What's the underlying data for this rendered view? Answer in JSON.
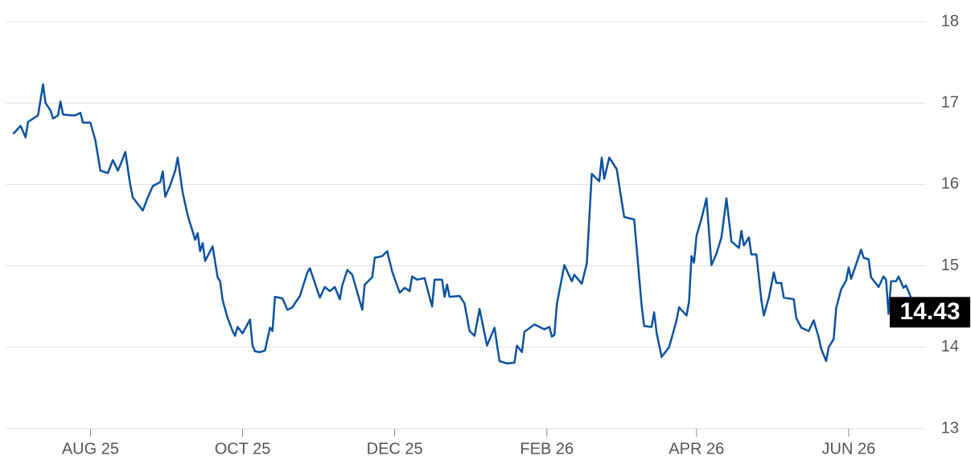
{
  "chart_data": {
    "type": "line",
    "color": "#0b52a0",
    "grid": true,
    "x": [
      0,
      3,
      5,
      6,
      10,
      12,
      13,
      15,
      16,
      18,
      19,
      20,
      23,
      25,
      27,
      28,
      31,
      33,
      35,
      38,
      40,
      42,
      43,
      45,
      47,
      48,
      52,
      54,
      56,
      59,
      60,
      61,
      63,
      65,
      66,
      68,
      70,
      73,
      74,
      75,
      76,
      77,
      80,
      82,
      83,
      84,
      86,
      88,
      89,
      90,
      92,
      95,
      96,
      97,
      99,
      101,
      103,
      104,
      105,
      108,
      110,
      112,
      113,
      115,
      118,
      119,
      123,
      125,
      127,
      129,
      131,
      132,
      134,
      136,
      140,
      141,
      144,
      145,
      148,
      150,
      152,
      155,
      157,
      159,
      160,
      162,
      165,
      168,
      169,
      172,
      173,
      174,
      175,
      179,
      181,
      183,
      185,
      187,
      190,
      193,
      195,
      198,
      201,
      202,
      204,
      205,
      209,
      211,
      213,
      215,
      216,
      217,
      218,
      221,
      224,
      225,
      228,
      230,
      232,
      235,
      236,
      237,
      239,
      242,
      243,
      245,
      249,
      252,
      253,
      256,
      257,
      258,
      260,
      263,
      265,
      266,
      267,
      270,
      271,
      272,
      273,
      274,
      276,
      278,
      280,
      282,
      284,
      286,
      288,
      291,
      292,
      293,
      295,
      296,
      298,
      300,
      301,
      303,
      305,
      306,
      308,
      309,
      313,
      314,
      316,
      319,
      321,
      323,
      324,
      326,
      327,
      329,
      330,
      332,
      334,
      335,
      336,
      340,
      341,
      343,
      344,
      347,
      349,
      350,
      351,
      352,
      354,
      355,
      357,
      358,
      360,
      361,
      363,
      365
    ],
    "values": [
      16.62,
      16.72,
      16.58,
      16.77,
      16.85,
      17.23,
      17.0,
      16.91,
      16.81,
      16.85,
      17.02,
      16.86,
      16.85,
      16.85,
      16.88,
      16.76,
      16.76,
      16.54,
      16.17,
      16.14,
      16.3,
      16.17,
      16.24,
      16.4,
      15.99,
      15.84,
      15.68,
      15.84,
      15.98,
      16.03,
      16.16,
      15.85,
      15.99,
      16.17,
      16.33,
      15.9,
      15.62,
      15.32,
      15.4,
      15.18,
      15.28,
      15.06,
      15.24,
      14.86,
      14.81,
      14.58,
      14.36,
      14.2,
      14.14,
      14.25,
      14.17,
      14.34,
      14.02,
      13.95,
      13.94,
      13.96,
      14.24,
      14.2,
      14.62,
      14.6,
      14.46,
      14.49,
      14.54,
      14.63,
      14.92,
      14.97,
      14.61,
      14.74,
      14.69,
      14.74,
      14.59,
      14.76,
      14.95,
      14.89,
      14.46,
      14.77,
      14.86,
      15.1,
      15.12,
      15.18,
      14.93,
      14.67,
      14.73,
      14.69,
      14.87,
      14.83,
      14.85,
      14.5,
      14.83,
      14.83,
      14.62,
      14.77,
      14.62,
      14.63,
      14.54,
      14.2,
      14.14,
      14.47,
      14.02,
      14.24,
      13.83,
      13.8,
      13.81,
      14.02,
      13.94,
      14.19,
      14.28,
      14.25,
      14.22,
      14.25,
      14.13,
      14.15,
      14.53,
      15.01,
      14.81,
      14.89,
      14.78,
      15.03,
      16.13,
      16.04,
      16.33,
      16.07,
      16.33,
      16.19,
      15.99,
      15.6,
      15.57,
      14.51,
      14.26,
      14.25,
      14.43,
      14.18,
      13.88,
      14.0,
      14.22,
      14.33,
      14.49,
      14.39,
      14.56,
      15.12,
      15.04,
      15.37,
      15.58,
      15.83,
      15.01,
      15.15,
      15.35,
      15.83,
      15.3,
      15.22,
      15.43,
      15.25,
      15.35,
      15.14,
      15.14,
      14.58,
      14.39,
      14.61,
      14.92,
      14.79,
      14.79,
      14.61,
      14.59,
      14.36,
      14.24,
      14.2,
      14.33,
      14.12,
      13.98,
      13.83,
      14.0,
      14.1,
      14.48,
      14.71,
      14.82,
      14.98,
      14.84,
      15.2,
      15.1,
      15.08,
      14.86,
      14.74,
      14.87,
      14.83,
      14.41,
      14.81,
      14.81,
      14.87,
      14.73,
      14.76,
      14.61,
      14.56,
      14.53,
      14.43
    ],
    "xlim": [
      -3,
      366
    ],
    "xticks": [
      {
        "value": 31,
        "label": "AUG 25"
      },
      {
        "value": 92,
        "label": "OCT 25"
      },
      {
        "value": 153,
        "label": "DEC 25"
      },
      {
        "value": 214,
        "label": "FEB 26"
      },
      {
        "value": 274,
        "label": "APR 26"
      },
      {
        "value": 335,
        "label": "JUN 26"
      }
    ],
    "ylim": [
      13,
      18
    ],
    "yticks": [
      13,
      14,
      15,
      16,
      17,
      18
    ]
  }
}
